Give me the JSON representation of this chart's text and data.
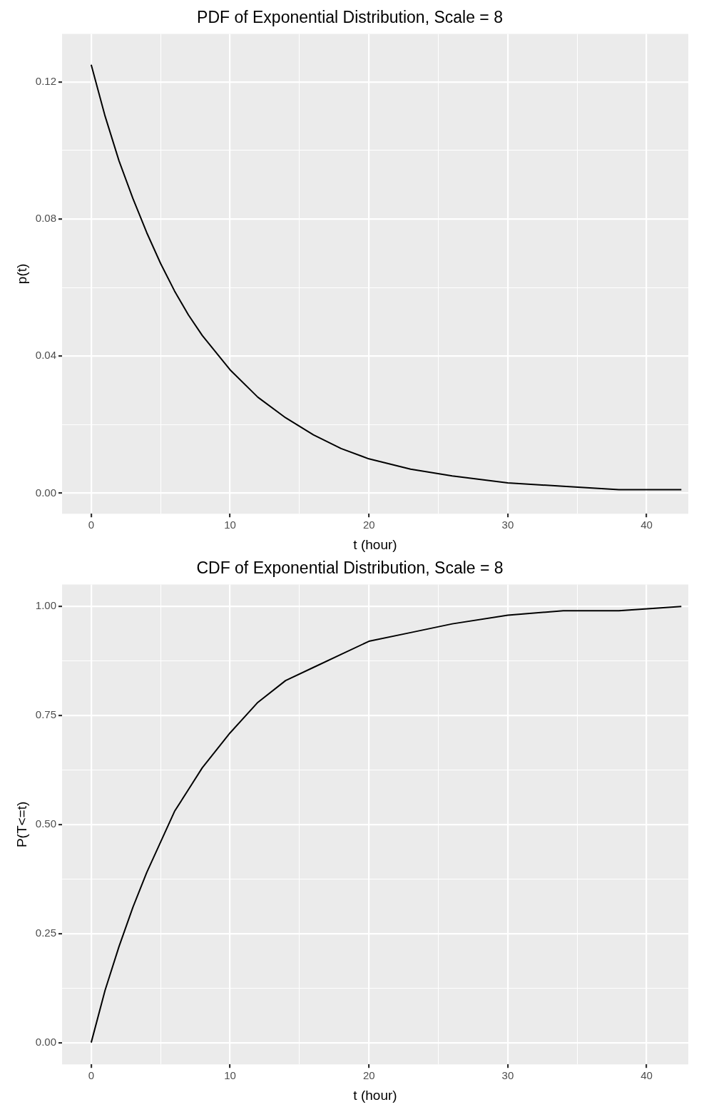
{
  "chart_data": [
    {
      "type": "line",
      "title": "PDF of Exponential Distribution, Scale = 8",
      "xlabel": "t (hour)",
      "ylabel": "p(t)",
      "color": "#000000",
      "marker": "none",
      "line_style": "solid",
      "grid": true,
      "x": [
        0,
        1,
        2,
        3,
        4,
        5,
        6,
        7,
        8,
        10,
        12,
        14,
        16,
        18,
        20,
        23,
        26,
        30,
        34,
        38,
        42.5
      ],
      "values": [
        0.125,
        0.11,
        0.097,
        0.086,
        0.076,
        0.067,
        0.059,
        0.052,
        0.046,
        0.036,
        0.028,
        0.022,
        0.017,
        0.013,
        0.01,
        0.007,
        0.005,
        0.003,
        0.002,
        0.001,
        0.001
      ],
      "xlim": [
        -2.1,
        43
      ],
      "ylim": [
        -0.006,
        0.134
      ],
      "xticks": [
        0,
        {
          "value": 5,
          "label": null
        },
        10,
        {
          "value": 15,
          "label": null
        },
        20,
        {
          "value": 25,
          "label": null
        },
        30,
        {
          "value": 35,
          "label": null
        },
        40
      ],
      "yticks": [
        {
          "value": 0,
          "label": "0.00"
        },
        {
          "value": 0.02,
          "label": null
        },
        {
          "value": 0.04,
          "label": "0.04"
        },
        {
          "value": 0.06,
          "label": null
        },
        {
          "value": 0.08,
          "label": "0.08"
        },
        {
          "value": 0.1,
          "label": null
        },
        {
          "value": 0.12,
          "label": "0.12"
        }
      ]
    },
    {
      "type": "line",
      "title": "CDF of Exponential Distribution, Scale = 8",
      "xlabel": "t (hour)",
      "ylabel": "P(T<=t)",
      "color": "#000000",
      "marker": "none",
      "line_style": "solid",
      "grid": true,
      "x": [
        0,
        1,
        2,
        3,
        4,
        5,
        6,
        7,
        8,
        10,
        12,
        14,
        16,
        18,
        20,
        23,
        26,
        30,
        34,
        38,
        42.5
      ],
      "values": [
        0,
        0.12,
        0.22,
        0.31,
        0.39,
        0.46,
        0.53,
        0.58,
        0.63,
        0.71,
        0.78,
        0.83,
        0.86,
        0.89,
        0.92,
        0.94,
        0.96,
        0.98,
        0.99,
        0.99,
        1.0
      ],
      "xlim": [
        -2.1,
        43
      ],
      "ylim": [
        -0.05,
        1.05
      ],
      "xticks": [
        0,
        {
          "value": 5,
          "label": null
        },
        10,
        {
          "value": 15,
          "label": null
        },
        20,
        {
          "value": 25,
          "label": null
        },
        30,
        {
          "value": 35,
          "label": null
        },
        40
      ],
      "yticks": [
        {
          "value": 0,
          "label": "0.00"
        },
        {
          "value": 0.125,
          "label": null
        },
        {
          "value": 0.25,
          "label": "0.25"
        },
        {
          "value": 0.375,
          "label": null
        },
        {
          "value": 0.5,
          "label": "0.50"
        },
        {
          "value": 0.625,
          "label": null
        },
        {
          "value": 0.75,
          "label": "0.75"
        },
        {
          "value": 0.875,
          "label": null
        },
        {
          "value": 1,
          "label": "1.00"
        }
      ]
    }
  ]
}
